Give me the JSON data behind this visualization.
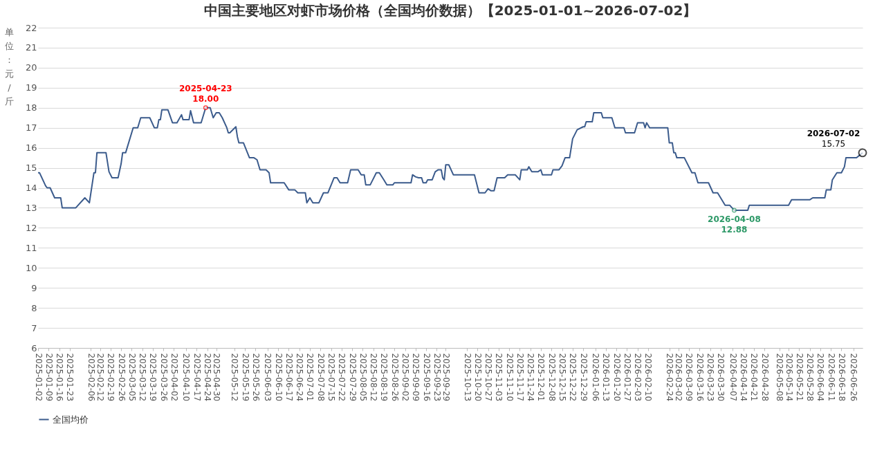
{
  "chart_data": {
    "type": "line",
    "title": "中国主要地区对虾市场价格（全国均价数据）【2025-01-01~2026-07-02】",
    "ylabel": "单位：元/斤",
    "xlim": [
      "2025-01-02",
      "2026-07-02"
    ],
    "xticks": [
      "2025-01-02",
      "2025-01-09",
      "2025-01-16",
      "2025-01-23",
      "2025-02-06",
      "2025-02-12",
      "2025-02-19",
      "2025-02-26",
      "2025-03-05",
      "2025-03-12",
      "2025-03-19",
      "2025-03-26",
      "2025-04-02",
      "2025-04-10",
      "2025-04-17",
      "2025-04-24",
      "2025-04-30",
      "2025-05-12",
      "2025-05-19",
      "2025-05-26",
      "2025-06-03",
      "2025-06-10",
      "2025-06-17",
      "2025-06-24",
      "2025-07-01",
      "2025-07-08",
      "2025-07-15",
      "2025-07-22",
      "2025-07-29",
      "2025-08-05",
      "2025-08-12",
      "2025-08-19",
      "2025-08-26",
      "2025-09-02",
      "2025-09-09",
      "2025-09-16",
      "2025-09-23",
      "2025-09-29",
      "2025-10-13",
      "2025-10-20",
      "2025-10-27",
      "2025-11-03",
      "2025-11-10",
      "2025-11-17",
      "2025-11-24",
      "2025-12-01",
      "2025-12-08",
      "2025-12-15",
      "2025-12-22",
      "2025-12-29",
      "2026-01-06",
      "2026-01-13",
      "2026-01-20",
      "2026-01-27",
      "2026-02-03",
      "2026-02-10",
      "2026-02-24",
      "2026-03-02",
      "2026-03-09",
      "2026-03-16",
      "2026-03-23",
      "2026-03-30",
      "2026-04-07",
      "2026-04-14",
      "2026-04-21",
      "2026-04-28",
      "2026-05-08",
      "2026-05-14",
      "2026-05-21",
      "2026-05-28",
      "2026-06-04",
      "2026-06-11",
      "2026-06-18",
      "2026-06-26"
    ],
    "ylim": [
      6,
      22
    ],
    "yticks": [
      6,
      7,
      8,
      9,
      10,
      11,
      12,
      13,
      14,
      15,
      16,
      17,
      18,
      19,
      20,
      21,
      22
    ],
    "grid": "y",
    "legend": "bottom",
    "x": [
      "2025-01-02",
      "2025-01-03",
      "2025-01-07",
      "2025-01-08",
      "2025-01-10",
      "2025-01-13",
      "2025-01-17",
      "2025-01-18",
      "2025-01-27",
      "2025-02-02",
      "2025-02-05",
      "2025-02-08",
      "2025-02-09",
      "2025-02-10",
      "2025-02-16",
      "2025-02-18",
      "2025-02-20",
      "2025-02-24",
      "2025-02-26",
      "2025-02-27",
      "2025-03-01",
      "2025-03-02",
      "2025-03-06",
      "2025-03-09",
      "2025-03-11",
      "2025-03-17",
      "2025-03-20",
      "2025-03-22",
      "2025-03-23",
      "2025-03-24",
      "2025-03-25",
      "2025-03-29",
      "2025-04-01",
      "2025-04-04",
      "2025-04-07",
      "2025-04-08",
      "2025-04-12",
      "2025-04-13",
      "2025-04-15",
      "2025-04-20",
      "2025-04-23",
      "2025-04-26",
      "2025-04-28",
      "2025-04-30",
      "2025-05-02",
      "2025-05-04",
      "2025-05-07",
      "2025-05-08",
      "2025-05-09",
      "2025-05-13",
      "2025-05-14",
      "2025-05-15",
      "2025-05-18",
      "2025-05-22",
      "2025-05-25",
      "2025-05-27",
      "2025-05-29",
      "2025-06-02",
      "2025-06-04",
      "2025-06-05",
      "2025-06-14",
      "2025-06-17",
      "2025-06-21",
      "2025-06-23",
      "2025-06-28",
      "2025-06-29",
      "2025-07-01",
      "2025-07-03",
      "2025-07-07",
      "2025-07-10",
      "2025-07-13",
      "2025-07-17",
      "2025-07-19",
      "2025-07-21",
      "2025-07-26",
      "2025-07-28",
      "2025-08-02",
      "2025-08-04",
      "2025-08-06",
      "2025-08-07",
      "2025-08-10",
      "2025-08-14",
      "2025-08-16",
      "2025-08-19",
      "2025-08-21",
      "2025-08-25",
      "2025-08-26",
      "2025-09-06",
      "2025-09-07",
      "2025-09-09",
      "2025-09-11",
      "2025-09-13",
      "2025-09-14",
      "2025-09-16",
      "2025-09-17",
      "2025-09-20",
      "2025-09-22",
      "2025-09-24",
      "2025-09-26",
      "2025-09-27",
      "2025-09-28",
      "2025-09-29",
      "2025-10-01",
      "2025-10-04",
      "2025-10-18",
      "2025-10-21",
      "2025-10-25",
      "2025-10-27",
      "2025-10-29",
      "2025-10-31",
      "2025-11-02",
      "2025-11-07",
      "2025-11-09",
      "2025-11-14",
      "2025-11-17",
      "2025-11-18",
      "2025-11-22",
      "2025-11-23",
      "2025-11-25",
      "2025-11-29",
      "2025-12-01",
      "2025-12-02",
      "2025-12-08",
      "2025-12-09",
      "2025-12-13",
      "2025-12-15",
      "2025-12-17",
      "2025-12-20",
      "2025-12-22",
      "2025-12-25",
      "2025-12-29",
      "2025-12-30",
      "2025-12-31",
      "2026-01-04",
      "2026-01-05",
      "2026-01-10",
      "2026-01-11",
      "2026-01-17",
      "2026-01-19",
      "2026-01-25",
      "2026-01-26",
      "2026-02-01",
      "2026-02-03",
      "2026-02-07",
      "2026-02-08",
      "2026-02-09",
      "2026-02-11",
      "2026-02-23",
      "2026-02-24",
      "2026-02-26",
      "2026-02-27",
      "2026-02-28",
      "2026-03-01",
      "2026-03-06",
      "2026-03-11",
      "2026-03-13",
      "2026-03-15",
      "2026-03-22",
      "2026-03-25",
      "2026-03-28",
      "2026-04-02",
      "2026-04-05",
      "2026-04-08",
      "2026-04-17",
      "2026-04-18",
      "2026-05-14",
      "2026-05-16",
      "2026-05-28",
      "2026-05-30",
      "2026-06-07",
      "2026-06-08",
      "2026-06-11",
      "2026-06-12",
      "2026-06-15",
      "2026-06-18",
      "2026-06-20",
      "2026-06-21",
      "2026-06-28",
      "2026-07-02"
    ],
    "series": [
      {
        "name": "全国均价",
        "color": "#3b5b8c",
        "values": [
          14.75,
          14.75,
          14.1,
          14.0,
          14.0,
          13.5,
          13.5,
          13.0,
          13.0,
          13.5,
          13.25,
          14.75,
          14.75,
          15.75,
          15.75,
          14.8,
          14.5,
          14.5,
          15.2,
          15.75,
          15.75,
          16.0,
          17.0,
          17.0,
          17.5,
          17.5,
          17.0,
          17.0,
          17.4,
          17.4,
          17.9,
          17.9,
          17.25,
          17.25,
          17.65,
          17.4,
          17.4,
          17.85,
          17.25,
          17.25,
          18.0,
          18.0,
          17.5,
          17.75,
          17.75,
          17.5,
          17.0,
          16.75,
          16.75,
          17.05,
          16.55,
          16.25,
          16.25,
          15.5,
          15.5,
          15.4,
          14.9,
          14.9,
          14.75,
          14.25,
          14.25,
          13.9,
          13.9,
          13.75,
          13.75,
          13.25,
          13.5,
          13.25,
          13.25,
          13.75,
          13.75,
          14.5,
          14.5,
          14.25,
          14.25,
          14.9,
          14.9,
          14.65,
          14.65,
          14.15,
          14.15,
          14.75,
          14.75,
          14.4,
          14.15,
          14.15,
          14.25,
          14.25,
          14.65,
          14.55,
          14.5,
          14.5,
          14.25,
          14.25,
          14.4,
          14.4,
          14.8,
          14.9,
          14.9,
          14.5,
          14.4,
          15.15,
          15.15,
          14.65,
          14.65,
          13.75,
          13.75,
          13.95,
          13.85,
          13.85,
          14.5,
          14.5,
          14.65,
          14.65,
          14.4,
          14.9,
          14.9,
          15.05,
          14.8,
          14.8,
          14.9,
          14.65,
          14.65,
          14.9,
          14.9,
          15.1,
          15.5,
          15.5,
          16.45,
          16.9,
          17.05,
          17.05,
          17.3,
          17.3,
          17.75,
          17.75,
          17.5,
          17.5,
          17.0,
          17.0,
          16.75,
          16.75,
          17.25,
          17.25,
          17.0,
          17.25,
          17.0,
          17.0,
          16.25,
          16.25,
          15.75,
          15.75,
          15.5,
          15.5,
          14.75,
          14.75,
          14.25,
          14.25,
          13.75,
          13.75,
          13.13,
          13.13,
          12.88,
          12.88,
          13.13,
          13.13,
          13.4,
          13.4,
          13.5,
          13.5,
          13.9,
          13.9,
          14.4,
          14.75,
          14.75,
          15.05,
          15.5,
          15.5,
          15.75
        ]
      }
    ],
    "annotations": [
      {
        "text": "2025-04-23\n18.00",
        "x": "2025-04-23",
        "y": 18.0
      },
      {
        "text": "2026-04-08\n12.88",
        "x": "2026-04-08",
        "y": 12.88
      },
      {
        "text": "2026-07-02\n15.75",
        "x": "2026-07-02",
        "y": 15.75
      }
    ]
  }
}
